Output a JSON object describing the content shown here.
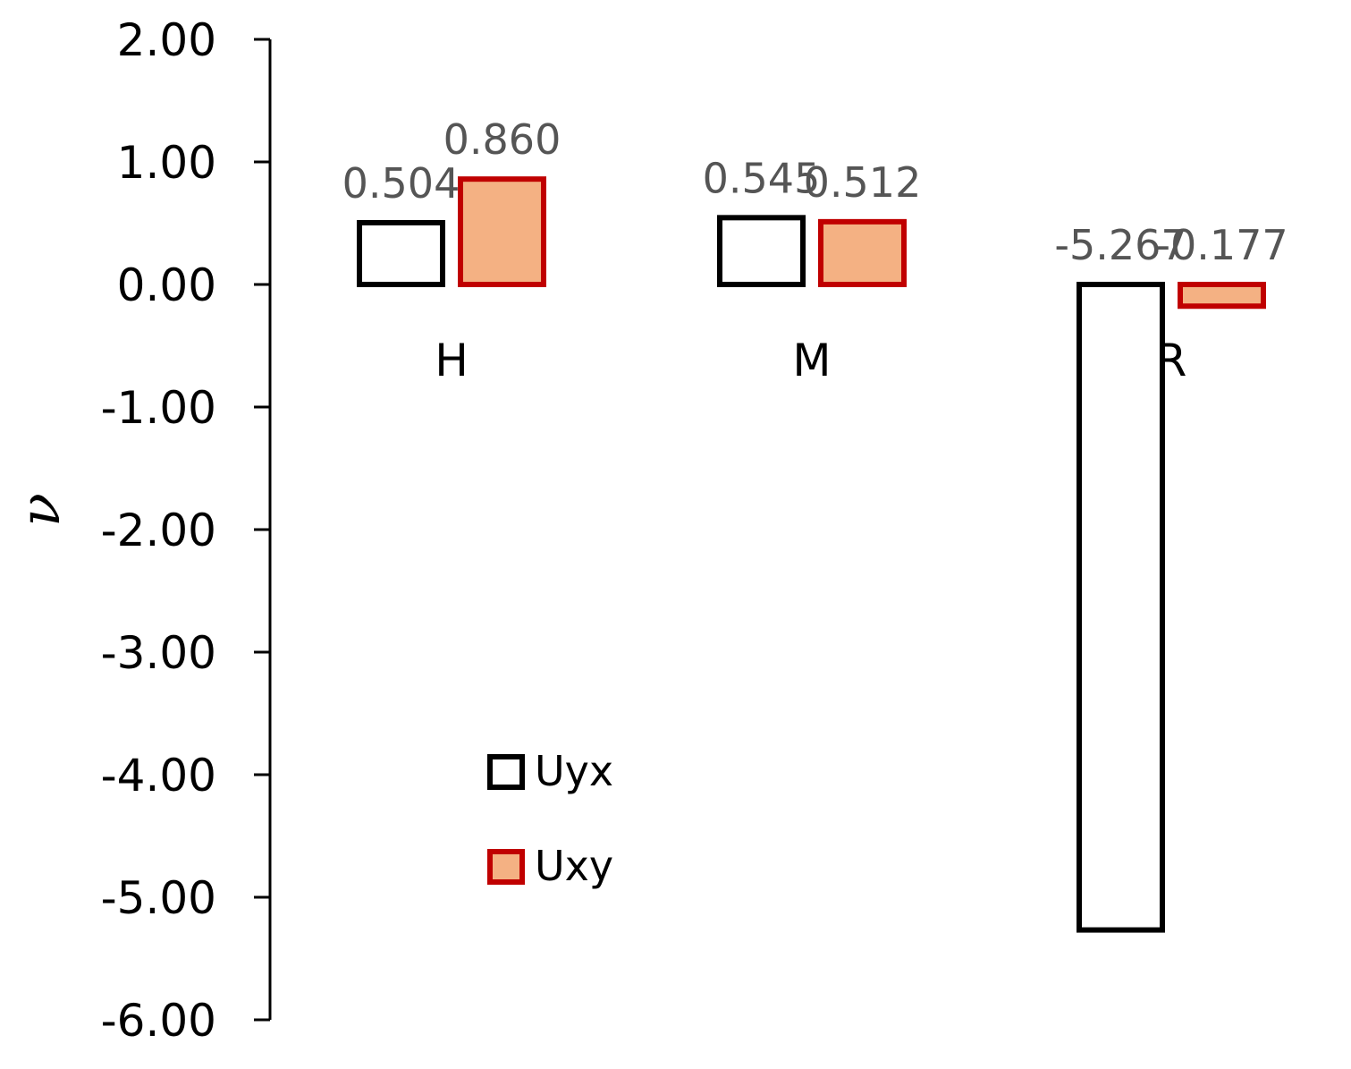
{
  "chart_data": {
    "type": "bar",
    "categories": [
      "H",
      "M",
      "R"
    ],
    "series": [
      {
        "name": "Uyx",
        "values": [
          0.504,
          0.545,
          -5.267
        ],
        "fill": "#ffffff",
        "stroke": "#000000"
      },
      {
        "name": "Uxy",
        "values": [
          0.86,
          0.512,
          -0.177
        ],
        "fill": "#f4b183",
        "stroke": "#c00000"
      }
    ],
    "data_labels": [
      [
        "0.504",
        "0.545",
        "-5.267"
      ],
      [
        "0.860",
        "0.512",
        "-0.177"
      ]
    ],
    "ylabel": "ν",
    "ylim": [
      -6,
      2
    ],
    "yticks": [
      "2.00",
      "1.00",
      "0.00",
      "-1.00",
      "-2.00",
      "-3.00",
      "-4.00",
      "-5.00",
      "-6.00"
    ],
    "grid": false,
    "legend_position": "bottom-center"
  }
}
